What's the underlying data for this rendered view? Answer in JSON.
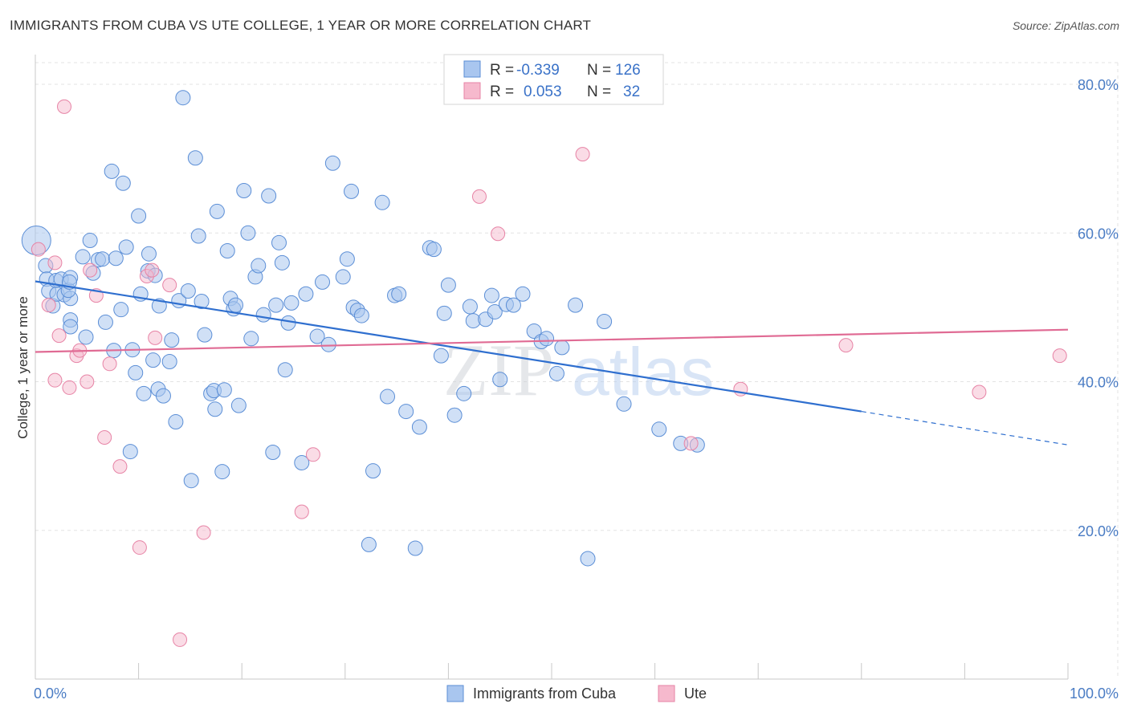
{
  "header": {
    "title": "IMMIGRANTS FROM CUBA VS UTE COLLEGE, 1 YEAR OR MORE CORRELATION CHART",
    "source": "Source: ZipAtlas.com"
  },
  "watermark": {
    "zip": "ZIP",
    "atlas": "atlas"
  },
  "legend": {
    "rows": [
      {
        "r_label": "R =",
        "r_value": "-0.339",
        "n_label": "N =",
        "n_value": "126",
        "color": "#a9c6ef"
      },
      {
        "r_label": "R =",
        "r_value": "0.053",
        "n_label": "N =",
        "n_value": "32",
        "color": "#f6b9cd"
      }
    ]
  },
  "chart_data": {
    "type": "scatter",
    "title": "IMMIGRANTS FROM CUBA VS UTE COLLEGE, 1 YEAR OR MORE CORRELATION CHART",
    "xlabel": "",
    "ylabel": "College, 1 year or more",
    "xlim": [
      0,
      100
    ],
    "ylim": [
      0,
      84
    ],
    "x_tick_labels": [
      "0.0%",
      "100.0%"
    ],
    "y_ticks": [
      20,
      40,
      60,
      80
    ],
    "y_tick_labels": [
      "20.0%",
      "40.0%",
      "60.0%",
      "80.0%"
    ],
    "grid": true,
    "legend_position": "top-center",
    "colors": {
      "cuba_fill": "#a9c6ef",
      "cuba_stroke": "#5b8ed6",
      "cuba_line": "#2f6fcf",
      "ute_fill": "#f6b9cd",
      "ute_stroke": "#e784a6",
      "ute_line": "#e06b94"
    },
    "series": [
      {
        "name": "Immigrants from Cuba",
        "trend": {
          "x0": 0,
          "y0": 53.5,
          "x1": 80,
          "y1": 36.0,
          "dash_to_x": 100,
          "dash_to_y": 31.5
        },
        "points": [
          [
            0.1,
            59.0
          ],
          [
            1.0,
            55.6
          ],
          [
            1.1,
            53.8
          ],
          [
            1.3,
            52.2
          ],
          [
            1.7,
            50.2
          ],
          [
            2.0,
            53.6
          ],
          [
            2.1,
            51.8
          ],
          [
            2.5,
            53.8
          ],
          [
            2.8,
            51.7
          ],
          [
            3.4,
            51.2
          ],
          [
            3.2,
            52.3
          ],
          [
            3.4,
            54.0
          ],
          [
            3.3,
            53.4
          ],
          [
            3.4,
            48.3
          ],
          [
            3.4,
            47.4
          ],
          [
            4.6,
            56.8
          ],
          [
            4.9,
            46.0
          ],
          [
            5.3,
            59.0
          ],
          [
            5.6,
            54.6
          ],
          [
            6.1,
            56.4
          ],
          [
            6.5,
            56.5
          ],
          [
            6.8,
            48.0
          ],
          [
            7.4,
            68.3
          ],
          [
            7.6,
            44.2
          ],
          [
            7.8,
            56.6
          ],
          [
            8.3,
            49.7
          ],
          [
            8.5,
            66.7
          ],
          [
            8.8,
            58.1
          ],
          [
            9.2,
            30.6
          ],
          [
            9.4,
            44.3
          ],
          [
            9.7,
            41.2
          ],
          [
            10.0,
            62.3
          ],
          [
            10.2,
            51.8
          ],
          [
            10.5,
            38.4
          ],
          [
            10.9,
            54.9
          ],
          [
            11.0,
            57.2
          ],
          [
            11.4,
            42.9
          ],
          [
            11.6,
            54.3
          ],
          [
            11.9,
            39.0
          ],
          [
            12.0,
            50.2
          ],
          [
            12.4,
            38.1
          ],
          [
            13.0,
            42.7
          ],
          [
            13.2,
            45.6
          ],
          [
            13.6,
            34.6
          ],
          [
            13.9,
            50.9
          ],
          [
            14.3,
            78.2
          ],
          [
            14.8,
            52.2
          ],
          [
            15.1,
            26.7
          ],
          [
            15.5,
            70.1
          ],
          [
            15.8,
            59.6
          ],
          [
            16.1,
            50.8
          ],
          [
            16.4,
            46.3
          ],
          [
            17.0,
            38.4
          ],
          [
            17.3,
            38.8
          ],
          [
            17.4,
            36.3
          ],
          [
            17.6,
            62.9
          ],
          [
            18.1,
            27.9
          ],
          [
            18.3,
            38.9
          ],
          [
            18.6,
            57.6
          ],
          [
            18.9,
            51.2
          ],
          [
            19.2,
            49.8
          ],
          [
            19.4,
            50.3
          ],
          [
            19.7,
            36.8
          ],
          [
            20.2,
            65.7
          ],
          [
            20.6,
            60.0
          ],
          [
            20.9,
            45.8
          ],
          [
            21.3,
            54.1
          ],
          [
            21.6,
            55.6
          ],
          [
            22.1,
            49.0
          ],
          [
            22.6,
            65.0
          ],
          [
            23.0,
            30.5
          ],
          [
            23.3,
            50.3
          ],
          [
            23.6,
            58.7
          ],
          [
            23.9,
            56.0
          ],
          [
            24.2,
            41.6
          ],
          [
            24.5,
            47.9
          ],
          [
            24.8,
            50.6
          ],
          [
            25.8,
            29.1
          ],
          [
            26.2,
            51.8
          ],
          [
            27.3,
            46.1
          ],
          [
            27.8,
            53.4
          ],
          [
            28.4,
            45.0
          ],
          [
            28.8,
            69.4
          ],
          [
            29.8,
            54.1
          ],
          [
            30.2,
            56.5
          ],
          [
            30.6,
            65.6
          ],
          [
            30.8,
            50.0
          ],
          [
            31.2,
            49.6
          ],
          [
            31.6,
            48.9
          ],
          [
            32.3,
            18.1
          ],
          [
            32.7,
            28.0
          ],
          [
            33.6,
            64.1
          ],
          [
            34.1,
            38.0
          ],
          [
            34.8,
            51.6
          ],
          [
            35.2,
            51.8
          ],
          [
            35.9,
            36.0
          ],
          [
            36.8,
            17.6
          ],
          [
            37.2,
            33.9
          ],
          [
            38.2,
            58.0
          ],
          [
            38.6,
            57.8
          ],
          [
            39.3,
            43.5
          ],
          [
            39.6,
            49.2
          ],
          [
            40.0,
            53.0
          ],
          [
            40.6,
            35.5
          ],
          [
            41.5,
            38.4
          ],
          [
            42.1,
            50.1
          ],
          [
            42.4,
            48.2
          ],
          [
            43.6,
            48.4
          ],
          [
            44.2,
            51.6
          ],
          [
            44.5,
            49.4
          ],
          [
            45.0,
            40.3
          ],
          [
            45.6,
            50.4
          ],
          [
            46.3,
            50.3
          ],
          [
            47.2,
            51.8
          ],
          [
            48.3,
            46.8
          ],
          [
            49.0,
            45.4
          ],
          [
            49.5,
            45.8
          ],
          [
            50.5,
            41.1
          ],
          [
            51.0,
            44.6
          ],
          [
            53.5,
            16.2
          ],
          [
            55.1,
            48.1
          ],
          [
            57.0,
            37.0
          ],
          [
            60.4,
            33.6
          ],
          [
            62.5,
            31.7
          ],
          [
            64.1,
            31.5
          ],
          [
            52.3,
            50.3
          ]
        ]
      },
      {
        "name": "Ute",
        "trend": {
          "x0": 0,
          "y0": 44.0,
          "x1": 100,
          "y1": 47.0
        },
        "points": [
          [
            0.3,
            57.8
          ],
          [
            1.3,
            50.3
          ],
          [
            1.9,
            40.2
          ],
          [
            2.3,
            46.2
          ],
          [
            2.8,
            77.0
          ],
          [
            3.3,
            39.2
          ],
          [
            4.0,
            43.5
          ],
          [
            4.3,
            44.2
          ],
          [
            5.0,
            40.0
          ],
          [
            5.3,
            55.0
          ],
          [
            5.9,
            51.6
          ],
          [
            6.7,
            32.5
          ],
          [
            7.2,
            42.4
          ],
          [
            8.2,
            28.6
          ],
          [
            10.1,
            17.7
          ],
          [
            10.8,
            54.2
          ],
          [
            11.3,
            55.0
          ],
          [
            11.6,
            45.9
          ],
          [
            13.0,
            53.0
          ],
          [
            14.0,
            5.3
          ],
          [
            16.3,
            19.7
          ],
          [
            25.8,
            22.5
          ],
          [
            26.9,
            30.2
          ],
          [
            43.0,
            64.9
          ],
          [
            44.8,
            59.9
          ],
          [
            53.0,
            70.6
          ],
          [
            63.5,
            31.7
          ],
          [
            68.3,
            39.0
          ],
          [
            78.5,
            44.9
          ],
          [
            91.4,
            38.6
          ],
          [
            99.2,
            43.5
          ],
          [
            1.9,
            56.0
          ]
        ]
      }
    ]
  },
  "bottom_legend": {
    "items": [
      {
        "label": "Immigrants from Cuba",
        "color": "#a9c6ef"
      },
      {
        "label": "Ute",
        "color": "#f6b9cd"
      }
    ]
  }
}
